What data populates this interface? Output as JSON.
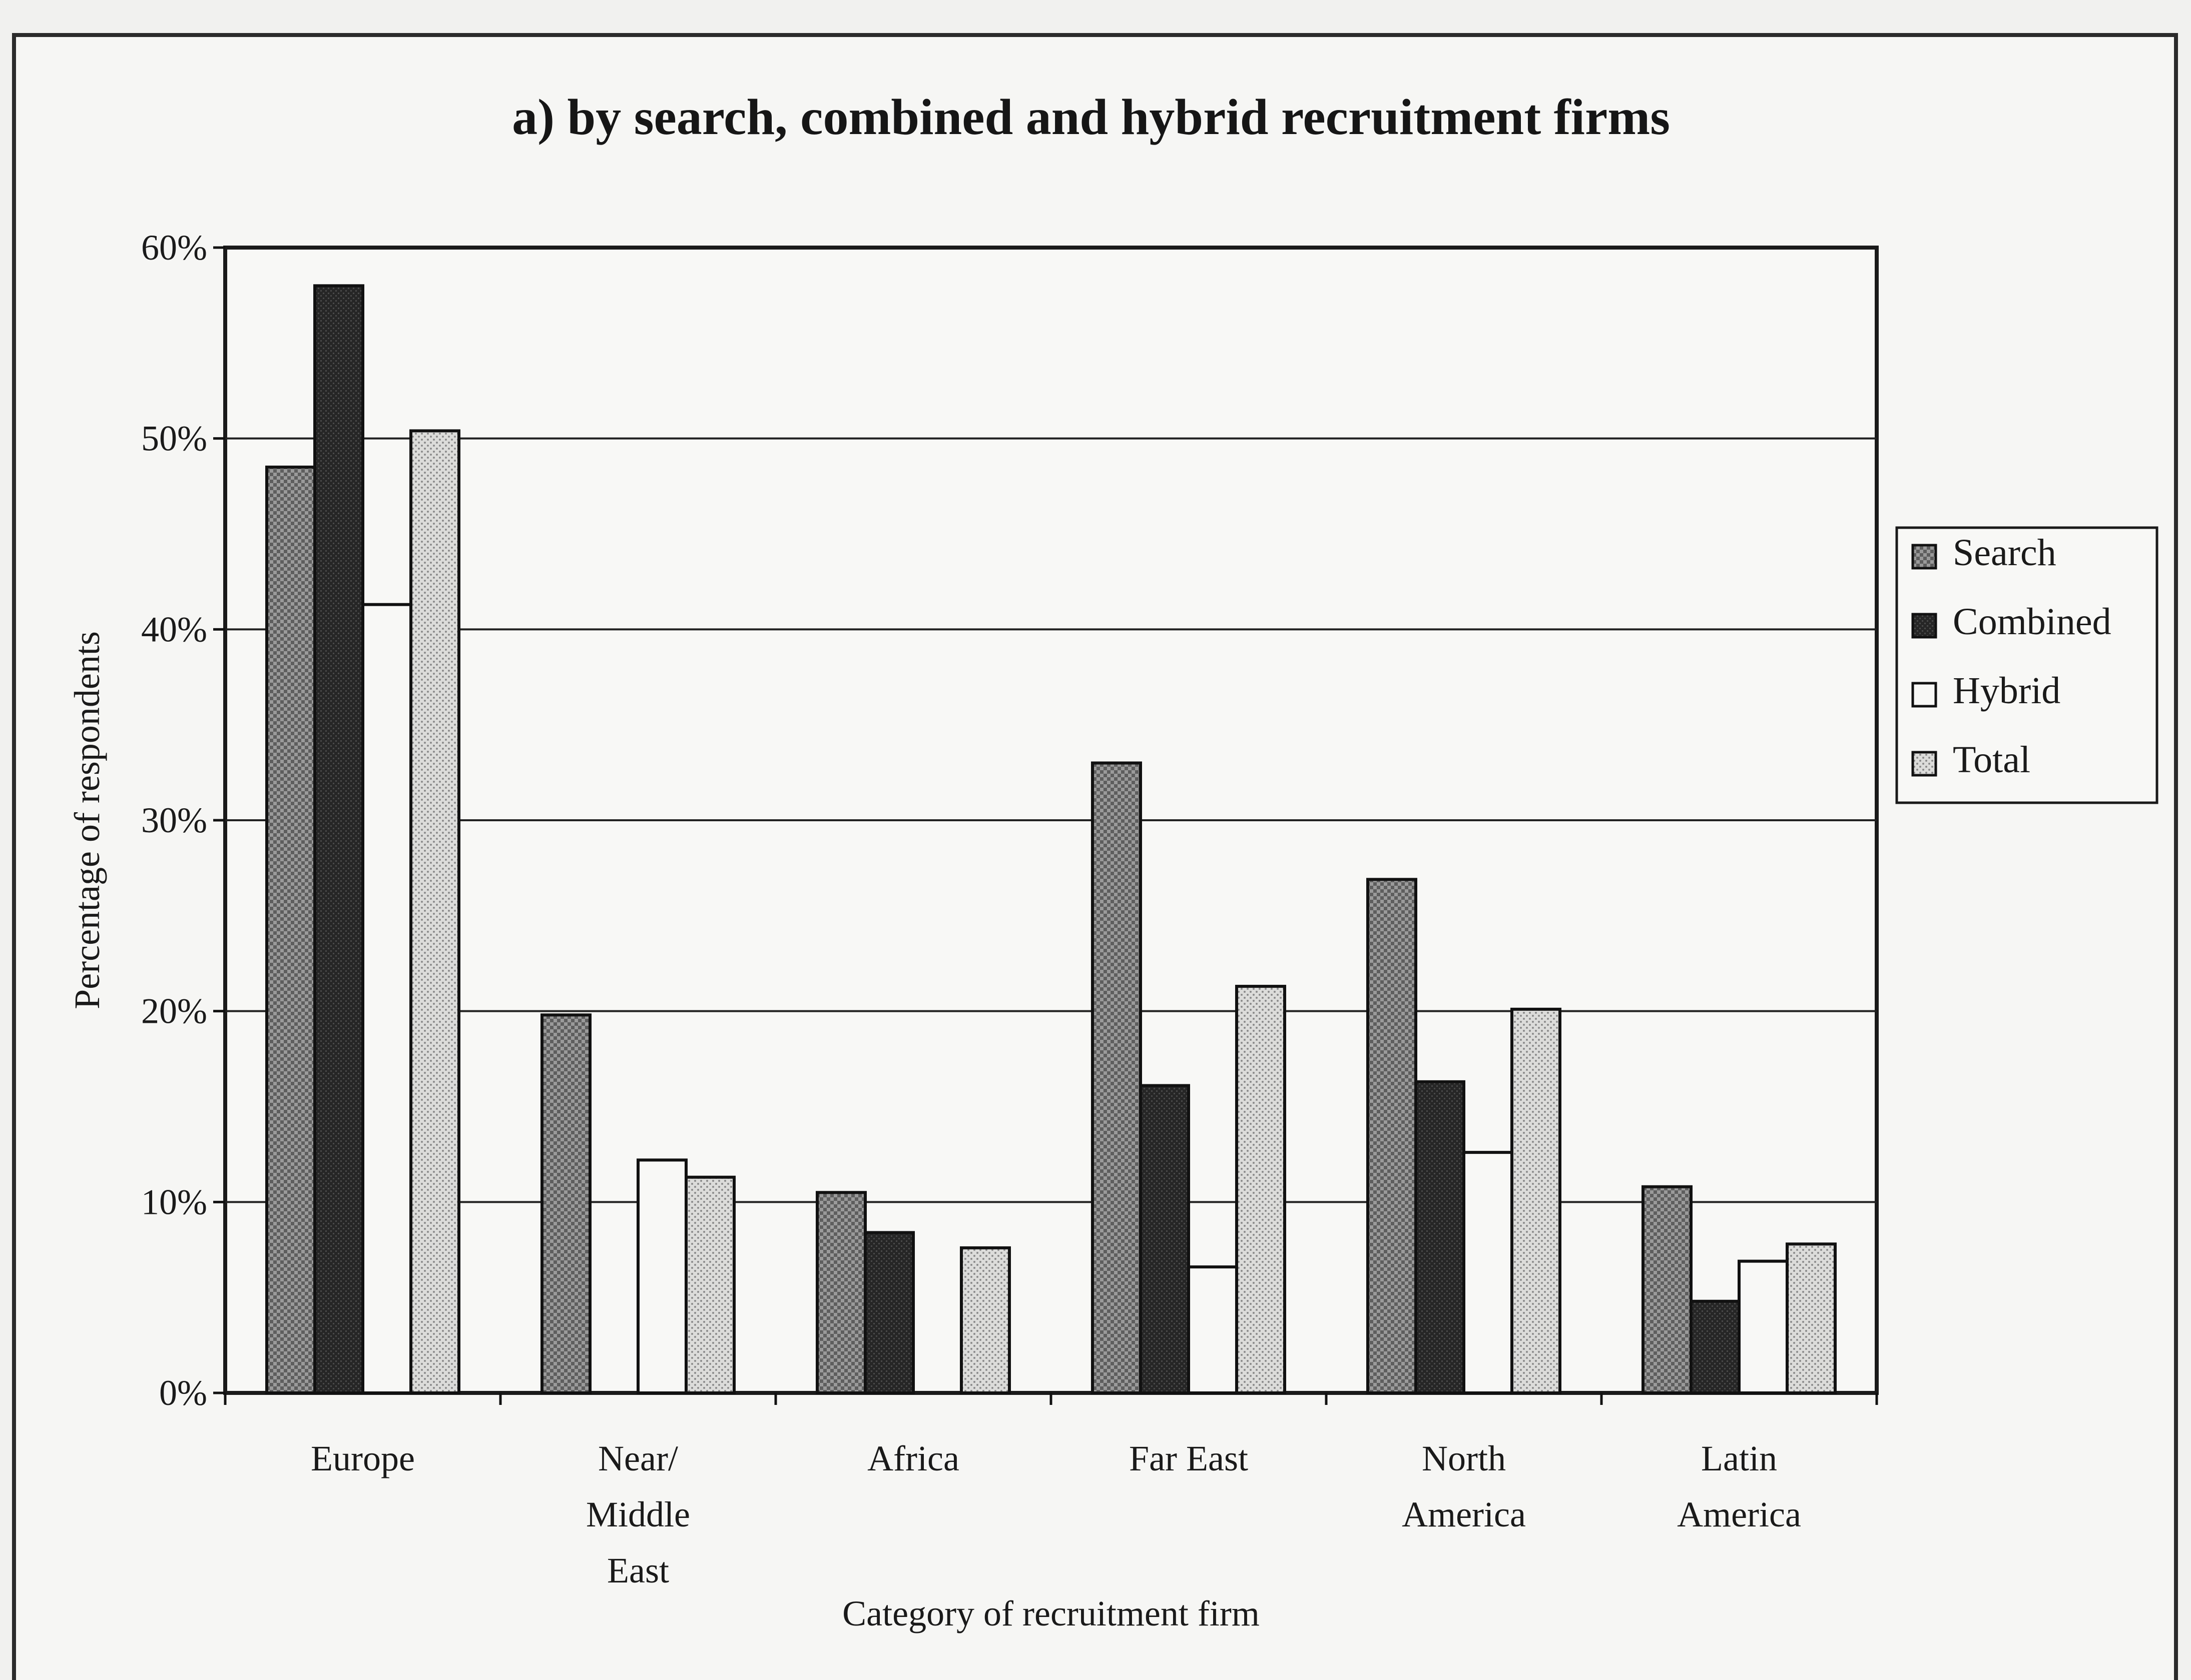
{
  "chart_data": {
    "type": "bar",
    "title": "a) by search, combined and hybrid recruitment firms",
    "xlabel": "Category of recruitment firm",
    "ylabel": "Percentage of respondents",
    "ylim": [
      0,
      60
    ],
    "yticks": [
      "0%",
      "10%",
      "20%",
      "30%",
      "40%",
      "50%",
      "60%"
    ],
    "grid": true,
    "legend_position": "right",
    "categories": [
      "Europe",
      "Near/ Middle East",
      "Africa",
      "Far East",
      "North America",
      "Latin America"
    ],
    "category_lines": [
      [
        "Europe"
      ],
      [
        "Near/",
        "Middle",
        "East"
      ],
      [
        "Africa"
      ],
      [
        "Far East"
      ],
      [
        "North",
        "America"
      ],
      [
        "Latin",
        "America"
      ]
    ],
    "series": [
      {
        "name": "Search",
        "values": [
          48.5,
          19.8,
          10.5,
          33,
          26.9,
          10.8
        ],
        "color": "#8c8c8c",
        "pattern": "checker"
      },
      {
        "name": "Combined",
        "values": [
          58,
          0,
          8.4,
          16.1,
          16.3,
          4.8
        ],
        "color": "#2a2a2a",
        "pattern": "dark"
      },
      {
        "name": "Hybrid",
        "values": [
          41.3,
          12.2,
          0,
          6.6,
          12.6,
          6.9
        ],
        "color": "#f7f7f5",
        "pattern": "plain"
      },
      {
        "name": "Total",
        "values": [
          50.4,
          11.3,
          7.6,
          21.3,
          20.1,
          7.8
        ],
        "color": "#d2d2d0",
        "pattern": "dots"
      }
    ]
  }
}
